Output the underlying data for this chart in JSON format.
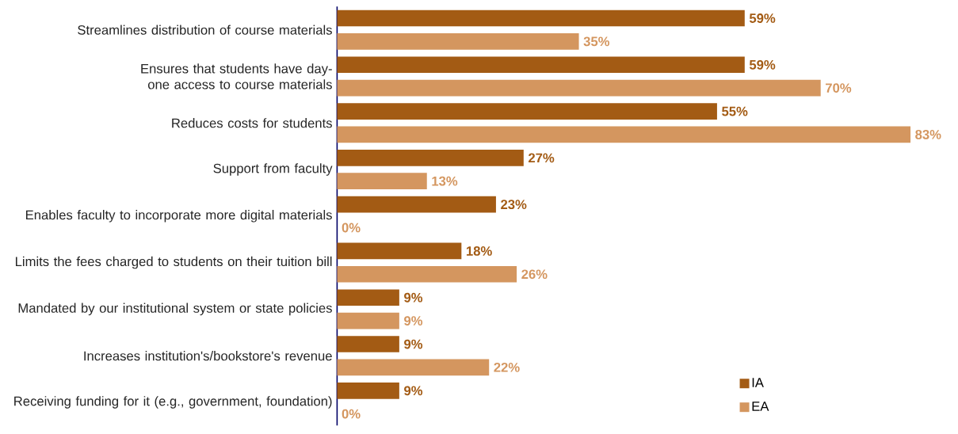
{
  "chart_data": {
    "type": "bar",
    "orientation": "horizontal",
    "categories": [
      "Streamlines distribution of course materials",
      "Ensures that students have day-one access to course materials",
      "Reduces costs for students",
      "Support from faculty",
      "Enables faculty to incorporate more digital materials",
      "Limits the fees charged to students on their tuition bill",
      "Mandated by our institutional system or state policies",
      "Increases institution's/bookstore's revenue",
      "Receiving funding for it (e.g., government, foundation)"
    ],
    "series": [
      {
        "name": "IA",
        "color": "#a35b14",
        "values": [
          59,
          59,
          55,
          27,
          23,
          18,
          9,
          9,
          9
        ],
        "value_labels": [
          "59%",
          "59%",
          "55%",
          "27%",
          "23%",
          "18%",
          "9%",
          "9%",
          "9%"
        ]
      },
      {
        "name": "EA",
        "color": "#d4965f",
        "values": [
          35,
          70,
          83,
          13,
          0,
          26,
          9,
          22,
          0
        ],
        "value_labels": [
          "35%",
          "70%",
          "83%",
          "13%",
          "0%",
          "26%",
          "9%",
          "22%",
          "0%"
        ]
      }
    ],
    "tick_labels": "y",
    "legend": "bottom right"
  }
}
